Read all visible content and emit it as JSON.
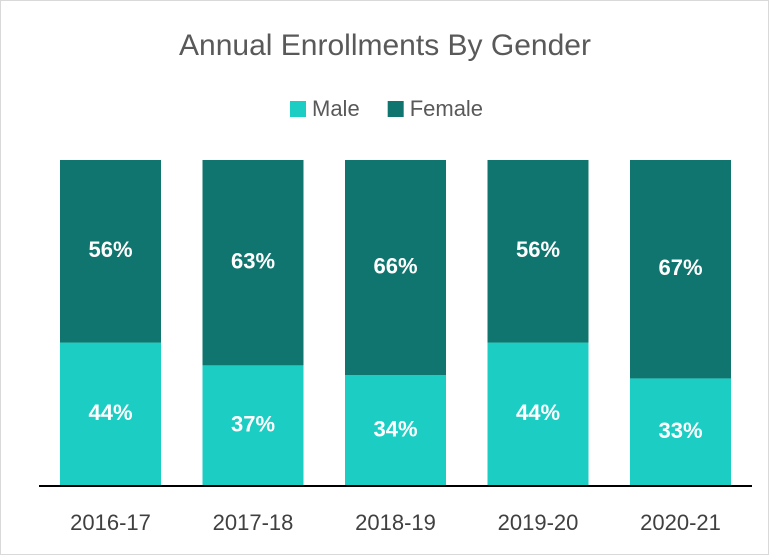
{
  "chart_data": {
    "type": "stacked-bar",
    "title": "Annual Enrollments By Gender",
    "categories": [
      "2016-17",
      "2017-18",
      "2018-19",
      "2019-20",
      "2020-21"
    ],
    "ylim": [
      0,
      100
    ],
    "series": [
      {
        "name": "Male",
        "color": "#1ccdc4",
        "values": [
          44,
          37,
          34,
          44,
          33
        ],
        "value_labels": [
          "44%",
          "37%",
          "34%",
          "44%",
          "33%"
        ]
      },
      {
        "name": "Female",
        "color": "#10756e",
        "values": [
          56,
          63,
          66,
          56,
          67
        ],
        "value_labels": [
          "56%",
          "63%",
          "66%",
          "56%",
          "67%"
        ]
      }
    ],
    "legend": "top"
  }
}
